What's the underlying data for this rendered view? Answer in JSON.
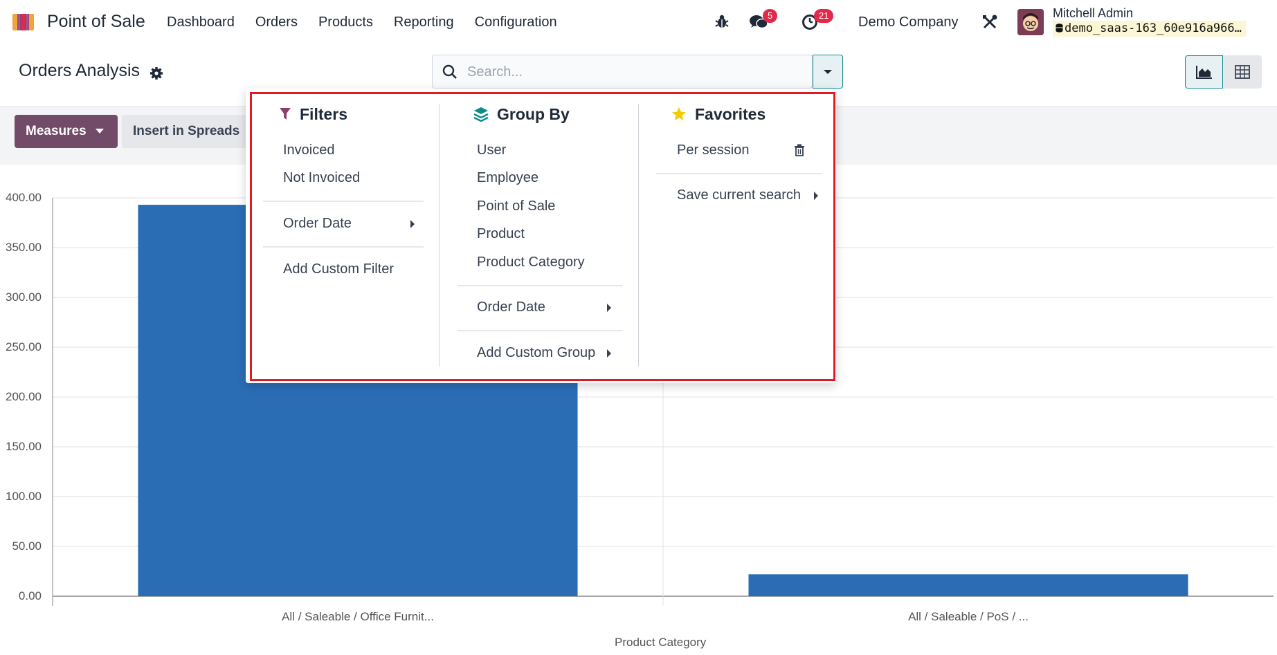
{
  "navbar": {
    "app_title": "Point of Sale",
    "menu": [
      "Dashboard",
      "Orders",
      "Products",
      "Reporting",
      "Configuration"
    ],
    "messages_count": "5",
    "activities_count": "21",
    "company": "Demo Company",
    "user_name": "Mitchell Admin",
    "database": "demo_saas-163_60e916a966…"
  },
  "control_panel": {
    "title": "Orders Analysis",
    "search_placeholder": "Search..."
  },
  "actions": {
    "measures_label": "Measures",
    "insert_label": "Insert in Spreads"
  },
  "search_panel": {
    "filters": {
      "title": "Filters",
      "items": [
        "Invoiced",
        "Not Invoiced"
      ],
      "order_date": "Order Date",
      "add_custom": "Add Custom Filter"
    },
    "group_by": {
      "title": "Group By",
      "items": [
        "User",
        "Employee",
        "Point of Sale",
        "Product",
        "Product Category"
      ],
      "order_date": "Order Date",
      "add_custom": "Add Custom Group"
    },
    "favorites": {
      "title": "Favorites",
      "items": [
        "Per session"
      ],
      "save_current": "Save current search"
    }
  },
  "colors": {
    "brand": "#714b67",
    "accent": "#0f8b8b",
    "bar": "#2a6db5",
    "highlight_border": "#e01b24",
    "badge": "#e0294b"
  },
  "chart_data": {
    "type": "bar",
    "categories": [
      "All / Saleable / Office Furnit...",
      "All / Saleable / PoS / ..."
    ],
    "series": [
      {
        "values": [
          393,
          22
        ]
      }
    ],
    "xlabel": "Product Category",
    "ylabel": "",
    "ylim": [
      0,
      400
    ],
    "yticks": [
      "0.00",
      "50.00",
      "100.00",
      "150.00",
      "200.00",
      "250.00",
      "300.00",
      "350.00",
      "400.00"
    ],
    "grid": true
  }
}
